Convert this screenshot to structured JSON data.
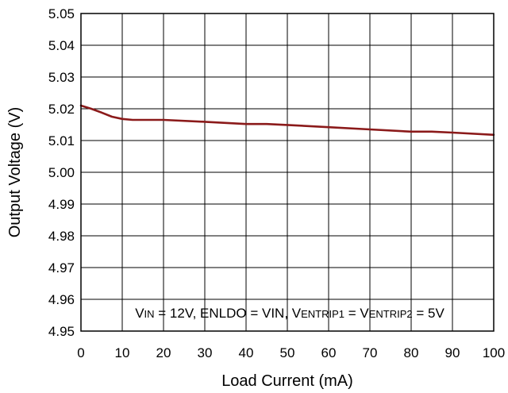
{
  "chart_data": {
    "type": "line",
    "title": "",
    "xlabel": "Load Current (mA)",
    "ylabel": "Output Voltage (V)",
    "xlim": [
      0,
      100
    ],
    "ylim": [
      4.95,
      5.05
    ],
    "x_ticks": [
      "0",
      "10",
      "20",
      "30",
      "40",
      "50",
      "60",
      "70",
      "80",
      "90",
      "100"
    ],
    "y_ticks": [
      "5.05",
      "5.04",
      "5.03",
      "5.02",
      "5.01",
      "5.00",
      "4.99",
      "4.98",
      "4.97",
      "4.96",
      "4.95"
    ],
    "grid": true,
    "series": [
      {
        "color": "#8b1a1a",
        "x": [
          0,
          2.5,
          5,
          7.5,
          10,
          12.5,
          15,
          20,
          30,
          40,
          45,
          50,
          60,
          70,
          80,
          85,
          90,
          100
        ],
        "y": [
          5.021,
          5.02,
          5.0188,
          5.0175,
          5.0168,
          5.0165,
          5.0165,
          5.0165,
          5.0159,
          5.0152,
          5.0152,
          5.0149,
          5.0142,
          5.0135,
          5.0128,
          5.0128,
          5.0125,
          5.0118
        ]
      }
    ],
    "annotation": {
      "parts": [
        {
          "text": "V",
          "sub": false
        },
        {
          "text": "IN",
          "sub": true
        },
        {
          "text": " = 12V, ENLDO = VIN, V",
          "sub": false
        },
        {
          "text": "ENTRIP1",
          "sub": true
        },
        {
          "text": " = V",
          "sub": false
        },
        {
          "text": "ENTRIP2",
          "sub": true
        },
        {
          "text": " = 5V",
          "sub": false
        }
      ]
    }
  }
}
